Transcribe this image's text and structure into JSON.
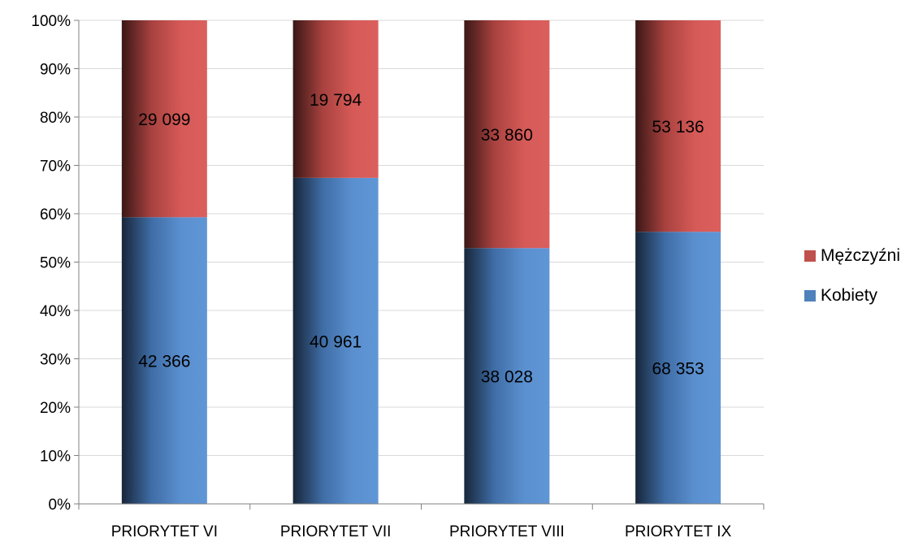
{
  "chart_data": {
    "type": "bar",
    "stacked": "percent",
    "title": "",
    "xlabel": "",
    "ylabel": "",
    "ylim": [
      0,
      100
    ],
    "yticks": [
      "0%",
      "10%",
      "20%",
      "30%",
      "40%",
      "50%",
      "60%",
      "70%",
      "80%",
      "90%",
      "100%"
    ],
    "grid": true,
    "legend_position": "right",
    "categories": [
      "PRIORYTET VI",
      "PRIORYTET VII",
      "PRIORYTET VIII",
      "PRIORYTET IX"
    ],
    "series": [
      {
        "name": "Kobiety",
        "color": "#4f81bd",
        "values": [
          42366,
          40961,
          38028,
          68353
        ],
        "labels": [
          "42 366",
          "40 961",
          "38 028",
          "68 353"
        ]
      },
      {
        "name": "Mężczyźni",
        "color": "#c0504d",
        "values": [
          29099,
          19794,
          33860,
          53136
        ],
        "labels": [
          "29 099",
          "19 794",
          "33 860",
          "53 136"
        ]
      }
    ]
  },
  "legend": {
    "items": [
      {
        "name": "Mężczyźni",
        "color": "#c0504d"
      },
      {
        "name": "Kobiety",
        "color": "#4f81bd"
      }
    ]
  }
}
